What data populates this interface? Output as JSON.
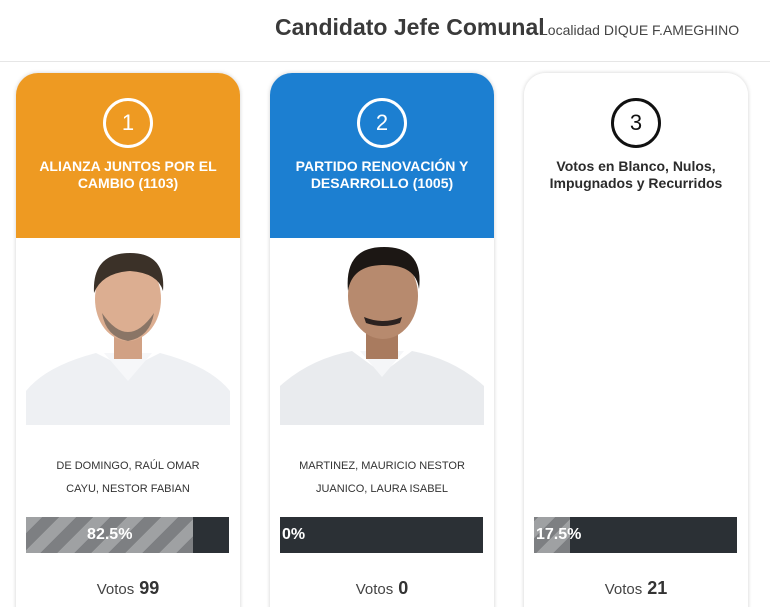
{
  "header": {
    "title": "Candidato Jefe Comunal",
    "locality": "Localidad DIQUE F.AMEGHINO"
  },
  "cards": [
    {
      "number": "1",
      "party": "ALIANZA JUNTOS POR EL CAMBIO (1103)",
      "candidates": [
        "DE DOMINGO, RAÚL OMAR",
        "CAYU, NESTOR FABIAN"
      ],
      "percent": 82.5,
      "percent_label": "82.5%",
      "votes_label": "Votos",
      "votes": "99",
      "color": "#ee9a22"
    },
    {
      "number": "2",
      "party": "PARTIDO RENOVACIÓN Y DESARROLLO (1005)",
      "candidates": [
        "MARTINEZ, MAURICIO NESTOR",
        "JUANICO, LAURA ISABEL"
      ],
      "percent": 0,
      "percent_label": "0%",
      "votes_label": "Votos",
      "votes": "0",
      "color": "#1c7fd1"
    },
    {
      "number": "3",
      "party": "Votos en Blanco, Nulos, Impugnados y Recurridos",
      "candidates": [],
      "percent": 17.5,
      "percent_label": "17.5%",
      "votes_label": "Votos",
      "votes": "21",
      "color": "#ffffff"
    }
  ]
}
